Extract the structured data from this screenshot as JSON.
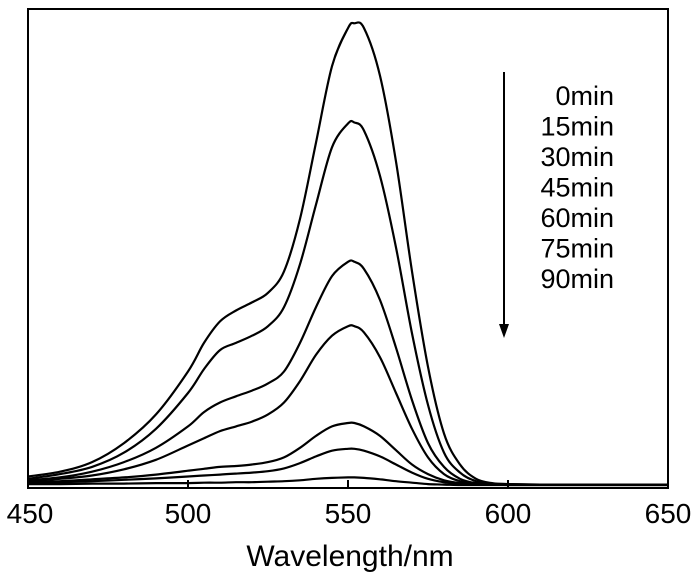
{
  "chart_data": {
    "type": "line",
    "title": "",
    "xlabel": "Wavelength/nm",
    "ylabel": "",
    "xlim": [
      450,
      650
    ],
    "ylim": [
      0,
      1.0
    ],
    "x_ticks": [
      "450",
      "500",
      "550",
      "600",
      "650"
    ],
    "y_ticks_shown": false,
    "grid": false,
    "line_color": "#000000",
    "legend": {
      "placement": "top-right",
      "entries": [
        "0min",
        "15min",
        "30min",
        "45min",
        "60min",
        "75min",
        "90min"
      ],
      "arrow_direction": "down"
    },
    "x": [
      450,
      460,
      470,
      480,
      490,
      500,
      505,
      510,
      515,
      520,
      525,
      530,
      535,
      540,
      545,
      550,
      552,
      555,
      560,
      565,
      570,
      575,
      580,
      585,
      590,
      595,
      600,
      610,
      620,
      630,
      640,
      650
    ],
    "series": [
      {
        "name": "0min",
        "values": [
          0.02,
          0.03,
          0.05,
          0.09,
          0.15,
          0.24,
          0.3,
          0.345,
          0.368,
          0.385,
          0.405,
          0.45,
          0.56,
          0.72,
          0.88,
          0.96,
          0.97,
          0.96,
          0.86,
          0.68,
          0.45,
          0.25,
          0.11,
          0.045,
          0.015,
          0.006,
          0.004,
          0.003,
          0.003,
          0.003,
          0.003,
          0.003
        ]
      },
      {
        "name": "15min",
        "values": [
          0.015,
          0.025,
          0.04,
          0.07,
          0.12,
          0.195,
          0.245,
          0.285,
          0.3,
          0.315,
          0.335,
          0.375,
          0.465,
          0.59,
          0.71,
          0.76,
          0.762,
          0.745,
          0.65,
          0.5,
          0.32,
          0.17,
          0.07,
          0.028,
          0.01,
          0.005,
          0.004,
          0.003,
          0.003,
          0.003,
          0.003,
          0.003
        ]
      },
      {
        "name": "30min",
        "values": [
          0.012,
          0.018,
          0.03,
          0.05,
          0.08,
          0.125,
          0.155,
          0.175,
          0.188,
          0.2,
          0.215,
          0.24,
          0.3,
          0.375,
          0.44,
          0.47,
          0.47,
          0.455,
          0.39,
          0.29,
          0.18,
          0.09,
          0.04,
          0.015,
          0.006,
          0.004,
          0.003,
          0.003,
          0.003,
          0.003,
          0.003,
          0.003
        ]
      },
      {
        "name": "45min",
        "values": [
          0.01,
          0.015,
          0.022,
          0.035,
          0.055,
          0.085,
          0.1,
          0.115,
          0.125,
          0.135,
          0.15,
          0.175,
          0.22,
          0.275,
          0.315,
          0.335,
          0.335,
          0.322,
          0.27,
          0.195,
          0.12,
          0.06,
          0.025,
          0.01,
          0.005,
          0.003,
          0.003,
          0.003,
          0.003,
          0.003,
          0.003,
          0.003
        ]
      },
      {
        "name": "60min",
        "values": [
          0.008,
          0.01,
          0.014,
          0.018,
          0.024,
          0.032,
          0.036,
          0.04,
          0.042,
          0.045,
          0.05,
          0.06,
          0.08,
          0.105,
          0.125,
          0.132,
          0.132,
          0.125,
          0.105,
          0.075,
          0.045,
          0.025,
          0.012,
          0.006,
          0.004,
          0.003,
          0.003,
          0.003,
          0.003,
          0.003,
          0.003,
          0.003
        ]
      },
      {
        "name": "75min",
        "values": [
          0.006,
          0.008,
          0.01,
          0.013,
          0.016,
          0.02,
          0.022,
          0.024,
          0.026,
          0.028,
          0.031,
          0.037,
          0.048,
          0.062,
          0.074,
          0.078,
          0.078,
          0.074,
          0.062,
          0.045,
          0.028,
          0.015,
          0.008,
          0.004,
          0.003,
          0.003,
          0.002,
          0.002,
          0.002,
          0.002,
          0.002,
          0.002
        ]
      },
      {
        "name": "90min",
        "values": [
          0.004,
          0.004,
          0.005,
          0.005,
          0.006,
          0.006,
          0.007,
          0.007,
          0.008,
          0.008,
          0.009,
          0.01,
          0.012,
          0.015,
          0.017,
          0.018,
          0.018,
          0.017,
          0.014,
          0.01,
          0.007,
          0.004,
          0.003,
          0.002,
          0.002,
          0.002,
          0.002,
          0.002,
          0.002,
          0.002,
          0.002,
          0.002
        ]
      }
    ]
  }
}
